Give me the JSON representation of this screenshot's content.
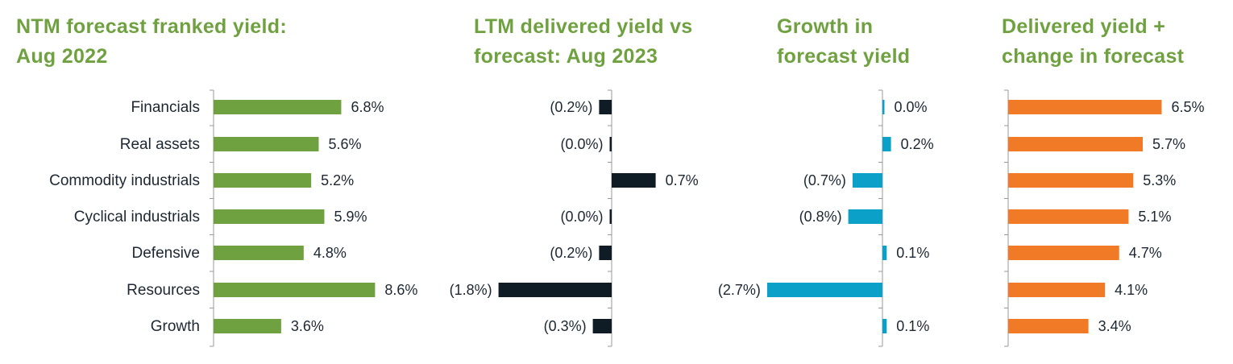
{
  "chart_data": {
    "type": "bar",
    "orientation": "horizontal",
    "categories": [
      "Financials",
      "Real assets",
      "Commodity industrials",
      "Cyclical industrials",
      "Defensive",
      "Resources",
      "Growth"
    ],
    "panels": [
      {
        "title": "NTM forecast franked yield:\nAug 2022",
        "color": "#6fa140",
        "values": [
          6.8,
          5.6,
          5.2,
          5.9,
          4.8,
          8.6,
          3.6
        ],
        "labels": [
          "6.8%",
          "5.6%",
          "5.2%",
          "5.9%",
          "4.8%",
          "8.6%",
          "3.6%"
        ]
      },
      {
        "title": "LTM delivered yield vs\nforecast: Aug 2023",
        "color": "#0f1c26",
        "values": [
          -0.2,
          -0.01,
          0.7,
          -0.01,
          -0.2,
          -1.8,
          -0.3
        ],
        "labels": [
          "(0.2%)",
          "(0.0%)",
          "0.7%",
          "(0.0%)",
          "(0.2%)",
          "(1.8%)",
          "(0.3%)"
        ]
      },
      {
        "title": "Growth in\nforecast yield",
        "color": "#0aa0c8",
        "values": [
          0.0,
          0.2,
          -0.7,
          -0.8,
          0.1,
          -2.7,
          0.1
        ],
        "labels": [
          "0.0%",
          "0.2%",
          "(0.7%)",
          "(0.8%)",
          "0.1%",
          "(2.7%)",
          "0.1%"
        ]
      },
      {
        "title": "Delivered yield +\nchange in forecast",
        "color": "#f07a25",
        "values": [
          6.5,
          5.7,
          5.3,
          5.1,
          4.7,
          4.1,
          3.4
        ],
        "labels": [
          "6.5%",
          "5.7%",
          "5.3%",
          "5.1%",
          "4.7%",
          "4.1%",
          "3.4%"
        ]
      }
    ]
  }
}
